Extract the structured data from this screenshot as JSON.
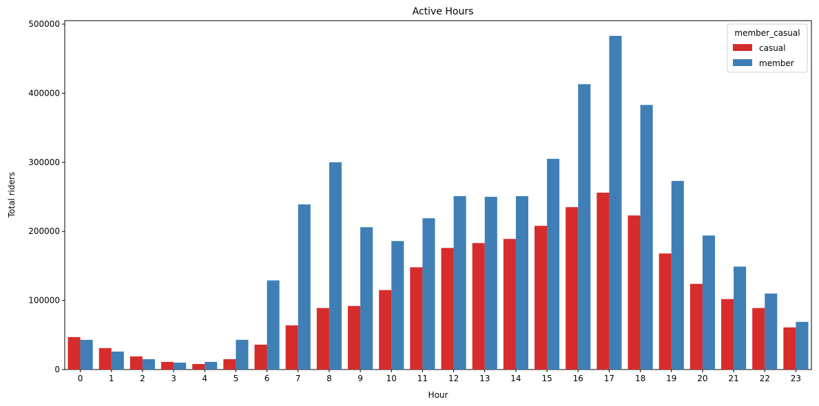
{
  "chart_data": {
    "type": "bar",
    "title": "Active Hours",
    "xlabel": "Hour",
    "ylabel": "Total riders",
    "ylim": [
      0,
      505000
    ],
    "yticks": [
      0,
      100000,
      200000,
      300000,
      400000,
      500000
    ],
    "categories": [
      "0",
      "1",
      "2",
      "3",
      "4",
      "5",
      "6",
      "7",
      "8",
      "9",
      "10",
      "11",
      "12",
      "13",
      "14",
      "15",
      "16",
      "17",
      "18",
      "19",
      "20",
      "21",
      "22",
      "23"
    ],
    "legend": {
      "title": "member_casual",
      "placement": "top-right"
    },
    "series": [
      {
        "name": "casual",
        "color": "#d62c2c",
        "values": [
          47000,
          31000,
          19000,
          11000,
          8000,
          15000,
          36000,
          64000,
          89000,
          92000,
          115000,
          148000,
          176000,
          183000,
          189000,
          208000,
          235000,
          256000,
          223000,
          168000,
          124000,
          102000,
          89000,
          61000
        ]
      },
      {
        "name": "member",
        "color": "#3f7fb5",
        "values": [
          43000,
          26000,
          15000,
          10000,
          11000,
          43000,
          129000,
          239000,
          300000,
          206000,
          186000,
          219000,
          251000,
          250000,
          251000,
          305000,
          413000,
          483000,
          383000,
          273000,
          194000,
          149000,
          110000,
          69000
        ]
      }
    ]
  }
}
